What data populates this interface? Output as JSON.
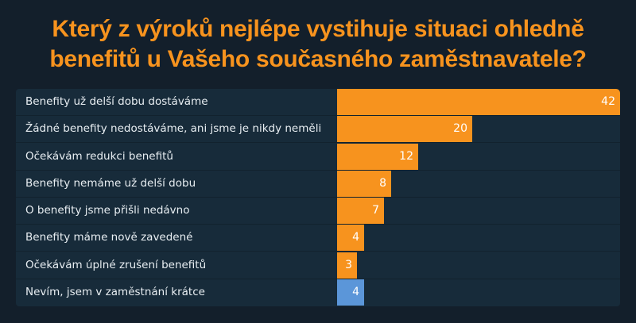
{
  "title": "Který z výroků nejlépe vystihuje situaci ohledně benefitů u Vašeho současného zaměstnavatele?",
  "title_line1": "Který z výroků nejlépe vystihuje situaci ohledně",
  "title_line2": "benefitů u Vašeho současného zaměstnavatele?",
  "colors": {
    "background": "#131f2b",
    "panel": "#172b3a",
    "title": "#f7931e",
    "bar_primary": "#f7931e",
    "bar_secondary": "#5b96d9"
  },
  "chart_data": {
    "type": "bar",
    "orientation": "horizontal",
    "title": "Který z výroků nejlépe vystihuje situaci ohledně benefitů u Vašeho současného zaměstnavatele?",
    "xlabel": "",
    "ylabel": "",
    "grid": false,
    "legend": null,
    "xlim": [
      0,
      42
    ],
    "categories": [
      "Benefity už delší dobu dostáváme",
      "Žádné benefity nedostáváme, ani jsme je nikdy neměli",
      "Očekávám redukci benefitů",
      "Benefity nemáme už delší dobu",
      "O benefity jsme přišli nedávno",
      "Benefity máme nově zavedené",
      "Očekávám úplné zrušení benefitů",
      "Nevím, jsem v zaměstnání krátce"
    ],
    "values": [
      42,
      20,
      12,
      8,
      7,
      4,
      3,
      4
    ],
    "bar_colors": [
      "#f7931e",
      "#f7931e",
      "#f7931e",
      "#f7931e",
      "#f7931e",
      "#f7931e",
      "#f7931e",
      "#5b96d9"
    ],
    "value_labels": [
      "42",
      "20",
      "12",
      "8",
      "7",
      "4",
      "3",
      "4"
    ]
  }
}
